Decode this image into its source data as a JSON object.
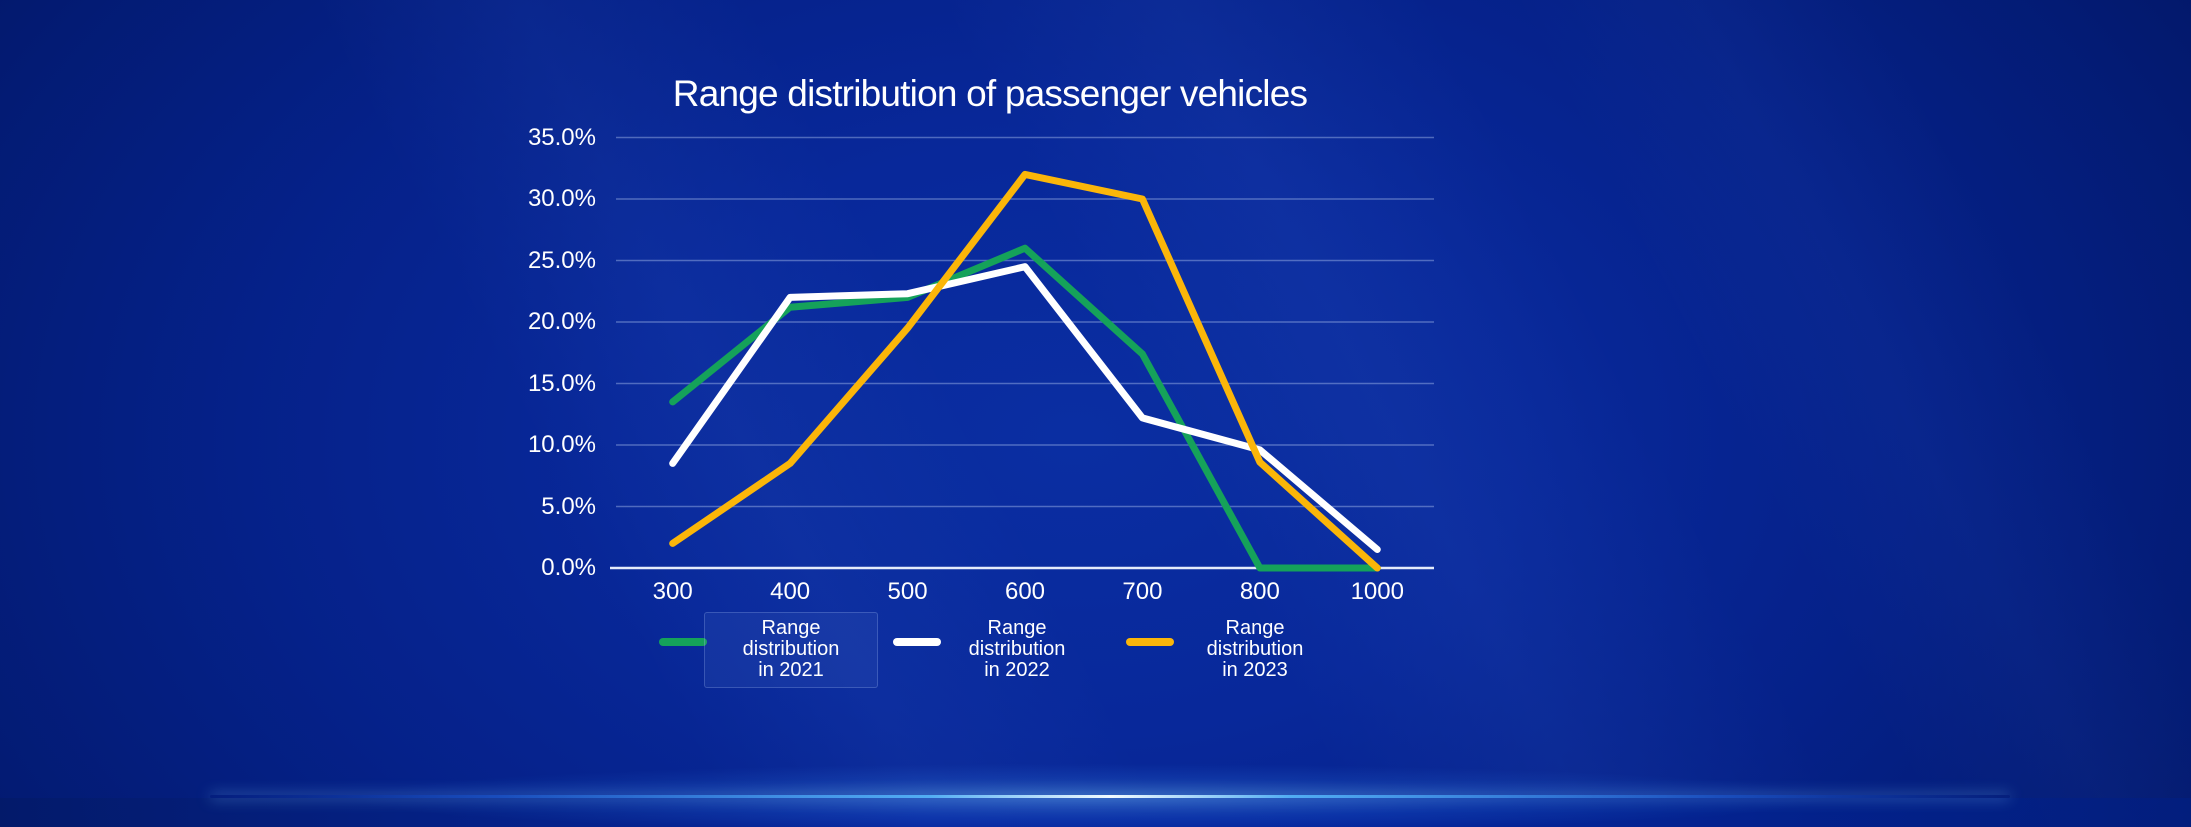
{
  "chart_data": {
    "type": "line",
    "title": "Range distribution of passenger vehicles",
    "categories": [
      "300",
      "400",
      "500",
      "600",
      "700",
      "800",
      "1000"
    ],
    "series": [
      {
        "id": "2021",
        "name": "Range distribution in 2021",
        "label_lines": [
          "Range",
          "distribution",
          "in 2021"
        ],
        "color": "#15A25A",
        "values": [
          13.5,
          21.2,
          22.0,
          26.0,
          17.4,
          0.0,
          0.0
        ],
        "legend_highlighted": true
      },
      {
        "id": "2022",
        "name": "Range distribution in 2022",
        "label_lines": [
          "Range",
          "distribution",
          "in 2022"
        ],
        "color": "#FFFFFF",
        "values": [
          8.5,
          22.0,
          22.3,
          24.5,
          12.2,
          9.6,
          1.5
        ],
        "legend_highlighted": false
      },
      {
        "id": "2023",
        "name": "Range distribution in 2023",
        "label_lines": [
          "Range",
          "distribution",
          "in 2023"
        ],
        "color": "#FBB609",
        "values": [
          2.0,
          8.5,
          19.5,
          32.0,
          30.0,
          8.6,
          0.0
        ],
        "legend_highlighted": false
      }
    ],
    "y_axis": {
      "min": 0,
      "max": 35,
      "step": 5,
      "tick_labels": [
        "0.0%",
        "5.0%",
        "10.0%",
        "15.0%",
        "20.0%",
        "25.0%",
        "30.0%",
        "35.0%"
      ],
      "grid": true
    },
    "x_axis": {
      "tick_labels": [
        "300",
        "400",
        "500",
        "600",
        "700",
        "800",
        "1000"
      ]
    },
    "legend_position": "bottom",
    "style": {
      "background_base": "#08289A",
      "grid_color": "rgba(185,205,245,0.40)",
      "axis_color": "rgba(240,246,255,0.95)",
      "text_color": "#FFFFFF",
      "glow_color": "#BFE9FF"
    }
  }
}
